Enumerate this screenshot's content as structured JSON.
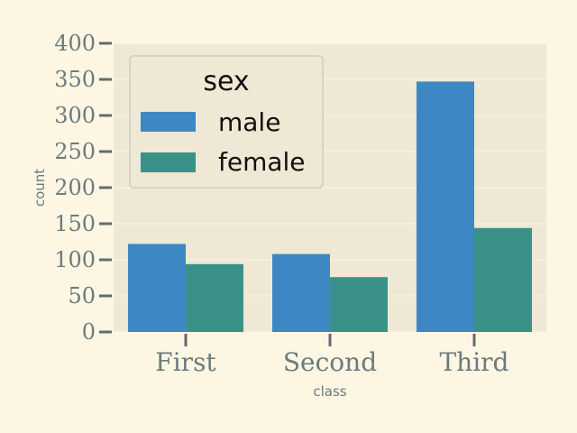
{
  "chart_data": {
    "type": "bar",
    "categories": [
      "First",
      "Second",
      "Third"
    ],
    "series": [
      {
        "name": "male",
        "values": [
          122,
          108,
          347
        ]
      },
      {
        "name": "female",
        "values": [
          94,
          76,
          144
        ]
      }
    ],
    "xlabel": "class",
    "ylabel": "count",
    "ylim": [
      0,
      400
    ],
    "yticks": [
      "0",
      "50",
      "100",
      "150",
      "200",
      "250",
      "300",
      "350",
      "400"
    ],
    "legend": {
      "title": "sex",
      "placement": "upper-left"
    },
    "grid": true,
    "colors": {
      "male": "#3d88c4",
      "female": "#3a9188",
      "plot_background": "#eee8d5",
      "page_background": "#fdf6e3",
      "grid": "#fdf6e3",
      "axis_text": "#6b7b7e",
      "tick": "#5f6d70"
    }
  }
}
